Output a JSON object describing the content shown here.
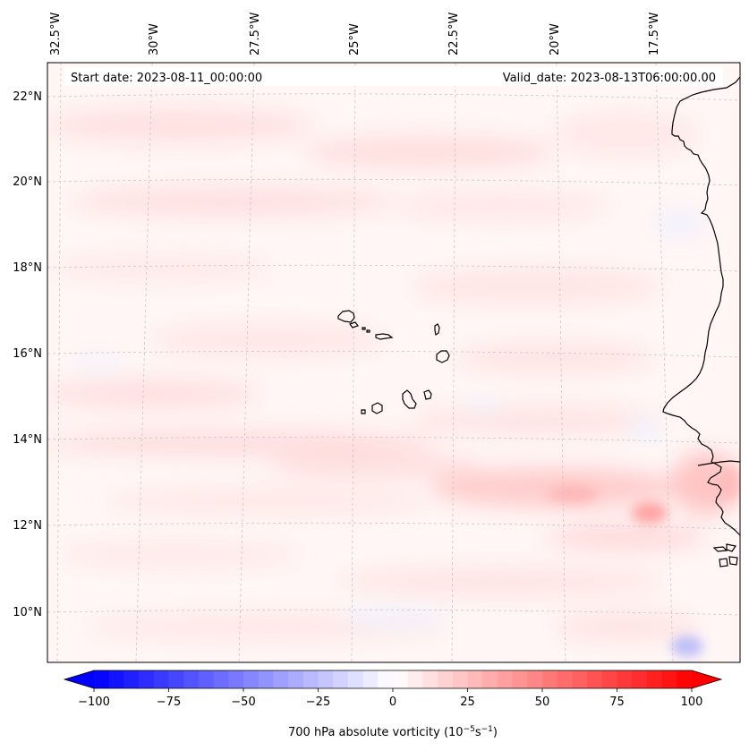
{
  "map": {
    "start_label": "Start date: 2023-08-11_00:00:00",
    "valid_label": "Valid_date: 2023-08-13T06:00:00.00",
    "lon_labels": [
      "32.5°W",
      "30°W",
      "27.5°W",
      "25°W",
      "22.5°W",
      "20°W",
      "17.5°W"
    ],
    "lat_labels": [
      "22°N",
      "20°N",
      "18°N",
      "16°N",
      "14°N",
      "12°N",
      "10°N"
    ]
  },
  "colorbar": {
    "label_prefix": "700 hPa absolute vorticity (10",
    "label_exp1": "−5",
    "label_mid": "s",
    "label_exp2": "−1",
    "label_suffix": ")",
    "ticks": [
      "−100",
      "−75",
      "−50",
      "−25",
      "0",
      "25",
      "50",
      "75",
      "100"
    ],
    "min": -100,
    "max": 100,
    "step": 5
  },
  "colors": {
    "negative_max": "#0000ff",
    "positive_max": "#ff0000",
    "coast": "#000000",
    "grid": "#cccccc"
  }
}
